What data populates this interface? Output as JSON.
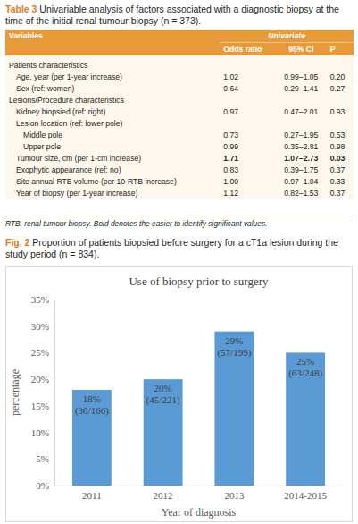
{
  "table": {
    "label": "Table 3",
    "title": "Univariable analysis of factors associated with a diagnostic biopsy at the time of the initial renal tumour biopsy (n = 373).",
    "header": {
      "variables": "Variables",
      "group": "Univariate",
      "columns": [
        "Odds ratio",
        "95% CI",
        "P"
      ]
    },
    "sections": [
      {
        "title": "Patients characteristics",
        "rows": [
          {
            "label": "Age, year (per 1-year increase)",
            "values": [
              "1.02",
              "0.99–1.05",
              "0.20"
            ]
          },
          {
            "label": "Sex (ref: women)",
            "values": [
              "0.64",
              "0.29–1.41",
              "0.27"
            ]
          }
        ]
      },
      {
        "title": "Lesions/Procedure characteristics",
        "rows": [
          {
            "label": "Kidney biopsied (ref: right)",
            "values": [
              "0.97",
              "0.47–2.01",
              "0.93"
            ]
          },
          {
            "label": "Lesion location (ref: lower pole)",
            "rows": [
              {
                "label": "Middle pole",
                "values": [
                  "0.73",
                  "0.27–1.95",
                  "0.53"
                ]
              },
              {
                "label": "Upper pole",
                "values": [
                  "0.99",
                  "0.35–2.81",
                  "0.98"
                ]
              }
            ]
          },
          {
            "label": "Tumour size, cm (per 1-cm increase)",
            "values": [
              "1.71",
              "1.07–2.73",
              "0.03"
            ],
            "bold": true
          },
          {
            "label": "Exophytic appearance (ref: no)",
            "values": [
              "0.83",
              "0.39–1.75",
              "0.37"
            ]
          },
          {
            "label": "Site annual RTB volume (per 10-RTB increase)",
            "values": [
              "1.00",
              "0.97–1.04",
              "0.33"
            ]
          },
          {
            "label": "Year of biopsy (per 1-year increase)",
            "values": [
              "1.12",
              "0.82–1.53",
              "0.37"
            ]
          }
        ]
      }
    ],
    "footnote": "RTB, renal tumour biopsy. Bold denotes the easier to identify significant values."
  },
  "figure": {
    "label": "Fig. 2",
    "caption": "Proportion of patients biopsied before surgery for a cT1a lesion during the study period (n = 834)."
  },
  "chart_data": {
    "type": "bar",
    "title": "Use of biopsy prior to surgery",
    "x_label": "Year of diagnosis",
    "y_label": "percentage",
    "categories": [
      "2011",
      "2012",
      "2013",
      "2014-2015"
    ],
    "values": [
      18,
      20,
      29,
      25
    ],
    "value_labels": [
      "18%",
      "20%",
      "29%",
      "25%"
    ],
    "annotations": [
      "(30/166)",
      "(45/221)",
      "(57/199)",
      "(63/248)"
    ],
    "color": "#5b9bd5",
    "ylim": [
      0,
      35
    ],
    "yticks": [
      {
        "value": 0,
        "label": "0%"
      },
      {
        "value": 5,
        "label": "5%"
      },
      {
        "value": 10,
        "label": "10%"
      },
      {
        "value": 15,
        "label": "15%"
      },
      {
        "value": 20,
        "label": "20%"
      },
      {
        "value": 25,
        "label": "25%"
      },
      {
        "value": 30,
        "label": "30%"
      },
      {
        "value": 35,
        "label": "35%"
      }
    ],
    "grid": false,
    "data_labels": true
  }
}
